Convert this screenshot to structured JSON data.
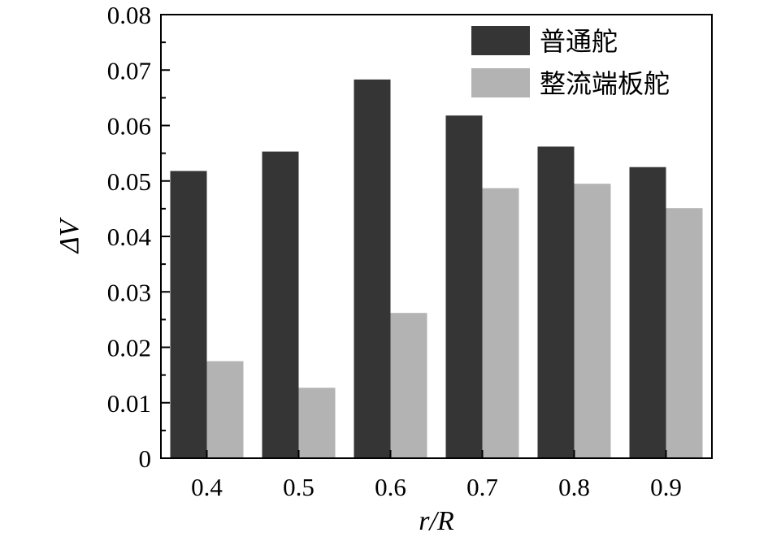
{
  "chart_data": {
    "type": "bar",
    "categories": [
      "0.4",
      "0.5",
      "0.6",
      "0.7",
      "0.8",
      "0.9"
    ],
    "series": [
      {
        "name": "普通舵",
        "color": "#353535",
        "values": [
          0.0518,
          0.0553,
          0.0683,
          0.0618,
          0.0562,
          0.0525
        ]
      },
      {
        "name": "整流端板舵",
        "color": "#b3b3b3",
        "values": [
          0.0175,
          0.0127,
          0.0262,
          0.0487,
          0.0495,
          0.0451
        ]
      }
    ],
    "xlabel": "r/R",
    "ylabel": "ΔV",
    "ylim": [
      0,
      0.08
    ],
    "yticks": [
      "0",
      "0.01",
      "0.02",
      "0.03",
      "0.04",
      "0.05",
      "0.06",
      "0.07",
      "0.08"
    ],
    "legend_position": "top-right",
    "grid": false
  }
}
